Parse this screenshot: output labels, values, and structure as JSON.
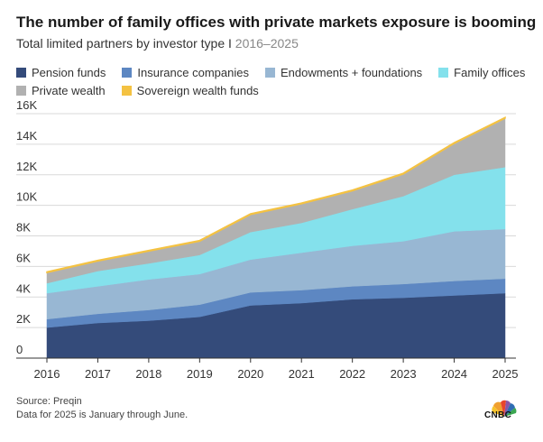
{
  "title": "The number of family offices with private markets exposure is booming",
  "subtitle": {
    "main": "Total limited partners by investor type",
    "separator": "I",
    "years": "2016–2025"
  },
  "footer": {
    "source": "Source: Preqin",
    "note": "Data for 2025 is January through June."
  },
  "logo": {
    "icon": "peacock-logo",
    "text": "CNBC"
  },
  "chart_data": {
    "type": "area",
    "stacked": true,
    "x": [
      2016,
      2017,
      2018,
      2019,
      2020,
      2021,
      2022,
      2023,
      2024,
      2025
    ],
    "y_ticks": [
      "0",
      "2K",
      "4K",
      "6K",
      "8K",
      "10K",
      "12K",
      "14K",
      "16K"
    ],
    "ylim": [
      0,
      16000
    ],
    "grid": true,
    "legend_position": "top",
    "series": [
      {
        "name": "Pension funds",
        "color": "#344b7a",
        "values": [
          2000,
          2300,
          2450,
          2700,
          3450,
          3600,
          3850,
          3950,
          4100,
          4250
        ]
      },
      {
        "name": "Insurance companies",
        "color": "#5d87c2",
        "values": [
          550,
          600,
          700,
          800,
          850,
          850,
          850,
          900,
          950,
          950
        ]
      },
      {
        "name": "Endowments + foundations",
        "color": "#98b7d3",
        "values": [
          1700,
          1800,
          2000,
          2000,
          2150,
          2450,
          2650,
          2800,
          3250,
          3250
        ]
      },
      {
        "name": "Family offices",
        "color": "#84e1ec",
        "values": [
          650,
          1000,
          1050,
          1250,
          1800,
          1950,
          2400,
          2950,
          3700,
          4050
        ]
      },
      {
        "name": "Private wealth",
        "color": "#b1b1b1",
        "values": [
          700,
          650,
          800,
          900,
          1150,
          1250,
          1200,
          1450,
          2050,
          3200
        ]
      },
      {
        "name": "Sovereign wealth funds",
        "color": "#f4c242",
        "values": [
          50,
          50,
          50,
          50,
          50,
          50,
          50,
          50,
          50,
          50
        ]
      }
    ]
  }
}
